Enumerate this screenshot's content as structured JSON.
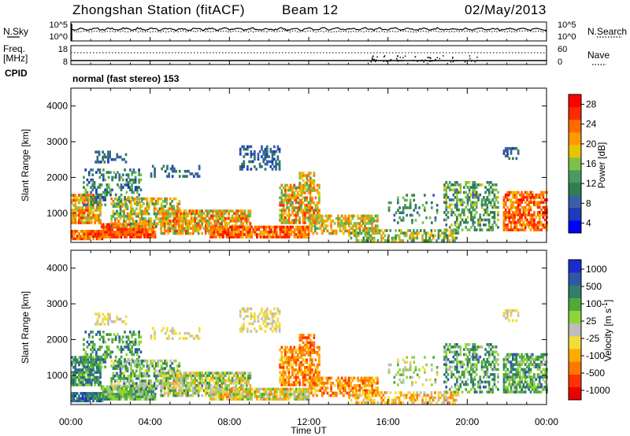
{
  "header": {
    "station": "Zhongshan Station (fitACF)",
    "beam": "Beam 12",
    "date": "02/May/2013"
  },
  "mode_text": "normal (fast stereo) 153",
  "colors": {
    "power": [
      "#0000ff",
      "#1a3cb8",
      "#3a5fa8",
      "#2f7f4f",
      "#4b9a60",
      "#7cc24a",
      "#e6c400",
      "#ff9900",
      "#ff6a00",
      "#ff2a00",
      "#ff0000"
    ],
    "velocity": [
      "#1a2dcc",
      "#2f57a8",
      "#2f7f6a",
      "#4faa3a",
      "#8fd43a",
      "#bdbdbd",
      "#f2dc3a",
      "#ffaa00",
      "#ff7700",
      "#ff3300",
      "#ee0000"
    ]
  },
  "chart_data": [
    {
      "type": "line",
      "panel": "noise-search-nave",
      "left_labels": [
        "N.Sky",
        "Freq.",
        "[MHz]",
        "CPID"
      ],
      "right_labels": [
        "N.Search",
        "Nave"
      ],
      "noise_ticks_left": [
        "10^5",
        "10^0"
      ],
      "noise_ticks_right": [
        "10^5",
        "10^0"
      ],
      "freq_ticks": [
        "18",
        "8"
      ],
      "nave_ticks": [
        "60",
        "0"
      ],
      "xlim": [
        0,
        24
      ]
    },
    {
      "type": "heatmap",
      "panel": "power",
      "ylabel": "Slant Range [km]",
      "ylim": [
        180,
        4500
      ],
      "y_ticks": [
        1000,
        2000,
        3000,
        4000
      ],
      "xlim": [
        0,
        24
      ],
      "colorbar_label": "Power [dB]",
      "colorbar_ticks": [
        "4",
        "8",
        "12",
        "16",
        "20",
        "24",
        "28"
      ]
    },
    {
      "type": "heatmap",
      "panel": "velocity",
      "ylabel": "Slant Range [km]",
      "ylim": [
        180,
        4500
      ],
      "y_ticks": [
        1000,
        2000,
        3000,
        4000
      ],
      "xlim": [
        0,
        24
      ],
      "colorbar_label": "Velocity [m s^-1]",
      "colorbar_ticks": [
        "1000",
        "500",
        "100",
        "25",
        "-25",
        "-100",
        "-500",
        "-1000"
      ]
    }
  ],
  "x_ticks": [
    "00:00",
    "04:00",
    "08:00",
    "12:00",
    "16:00",
    "20:00",
    "00:00"
  ],
  "xlabel": "Time UT"
}
